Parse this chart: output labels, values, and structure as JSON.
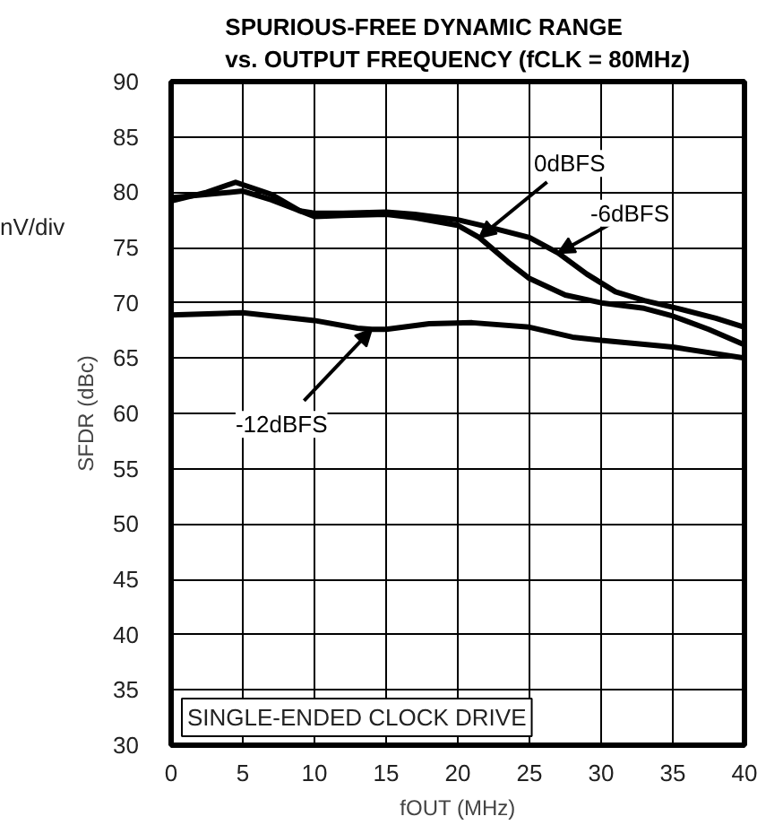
{
  "chart_data": {
    "type": "line",
    "title": "SPURIOUS-FREE DYNAMIC RANGE\nvs. OUTPUT FREQUENCY (fCLK = 80MHz)",
    "xlabel": "fOUT (MHz)",
    "ylabel": "SFDR (dBc)",
    "series": [
      {
        "name": "0dBFS",
        "color": "#000000",
        "x": [
          0,
          2.5,
          4.5,
          7,
          9,
          10,
          12,
          15,
          17,
          20,
          21.5,
          23.5,
          25,
          27.5,
          30,
          33,
          35,
          37.5,
          40
        ],
        "values": [
          79.2,
          80.0,
          80.9,
          79.8,
          78.3,
          77.8,
          77.9,
          78.0,
          77.7,
          77.0,
          75.9,
          73.7,
          72.2,
          70.7,
          70.0,
          69.5,
          68.8,
          67.6,
          66.2
        ]
      },
      {
        "name": "-6dBFS",
        "color": "#000000",
        "x": [
          0,
          2.5,
          5,
          7,
          9,
          10,
          12,
          15,
          17,
          20,
          22,
          25,
          27,
          29,
          31,
          33,
          35,
          38,
          40
        ],
        "values": [
          79.5,
          79.8,
          80.1,
          79.3,
          78.3,
          78.1,
          78.1,
          78.2,
          78.0,
          77.5,
          76.9,
          75.9,
          74.5,
          72.6,
          71.0,
          70.2,
          69.6,
          68.6,
          67.8
        ]
      },
      {
        "name": "-12dBFS",
        "color": "#000000",
        "x": [
          0,
          5,
          10,
          13,
          14,
          15,
          18,
          21,
          25,
          28,
          30,
          35,
          40
        ],
        "values": [
          68.9,
          69.1,
          68.4,
          67.7,
          67.6,
          67.6,
          68.1,
          68.2,
          67.8,
          66.9,
          66.6,
          66.0,
          65.0
        ]
      }
    ],
    "xlim": [
      0,
      40
    ],
    "xticks": [
      0,
      5,
      10,
      15,
      20,
      25,
      30,
      35,
      40
    ],
    "ylim": [
      30,
      90
    ],
    "yticks": [
      30,
      35,
      40,
      45,
      50,
      55,
      60,
      65,
      70,
      75,
      80,
      85,
      90
    ],
    "grid": true,
    "line_style": "solid",
    "marker": "none",
    "annotations": [
      "SINGLE-ENDED CLOCK DRIVE",
      "nV/div"
    ]
  }
}
